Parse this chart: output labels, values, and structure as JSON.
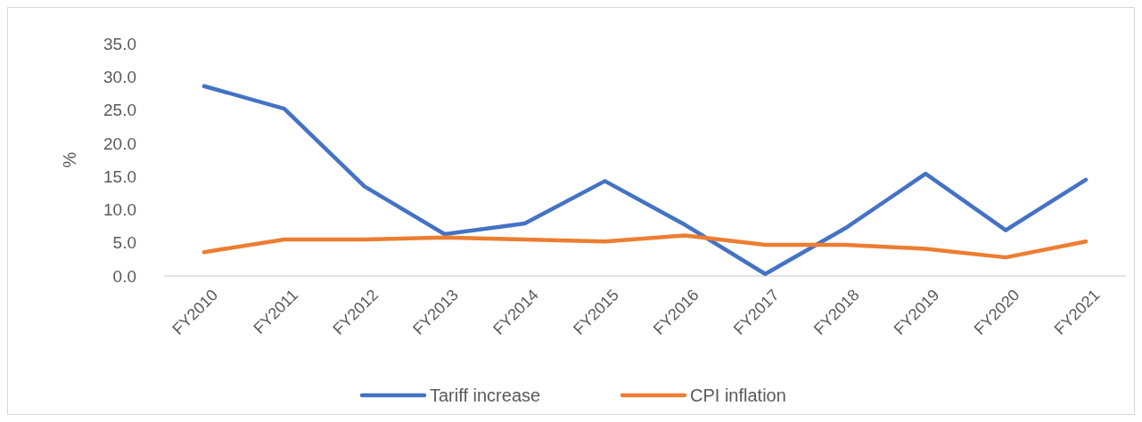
{
  "chart_data": {
    "type": "line",
    "ylabel": "%",
    "categories": [
      "FY2010",
      "FY2011",
      "FY2012",
      "FY2013",
      "FY2014",
      "FY2015",
      "FY2016",
      "FY2017",
      "FY2018",
      "FY2019",
      "FY2020",
      "FY2021"
    ],
    "series": [
      {
        "name": "Tariff increase",
        "color": "#4472c4",
        "values": [
          28.6,
          25.2,
          13.5,
          6.3,
          7.9,
          14.3,
          7.7,
          0.3,
          7.2,
          15.4,
          6.9,
          14.5
        ]
      },
      {
        "name": "CPI inflation",
        "color": "#ed7d31",
        "values": [
          3.6,
          5.5,
          5.5,
          5.8,
          5.5,
          5.2,
          6.1,
          4.7,
          4.7,
          4.1,
          2.8,
          5.2
        ]
      }
    ],
    "ylim": [
      0,
      35
    ],
    "yticks": [
      {
        "value": 0,
        "label": "0.0"
      },
      {
        "value": 5,
        "label": "5.0"
      },
      {
        "value": 10,
        "label": "10.0"
      },
      {
        "value": 15,
        "label": "15.0"
      },
      {
        "value": 20,
        "label": "20.0"
      },
      {
        "value": 25,
        "label": "25.0"
      },
      {
        "value": 30,
        "label": "30.0"
      },
      {
        "value": 35,
        "label": "35.0"
      }
    ],
    "grid": false,
    "legend": "bottom",
    "marker": "none",
    "line_style": "solid"
  }
}
